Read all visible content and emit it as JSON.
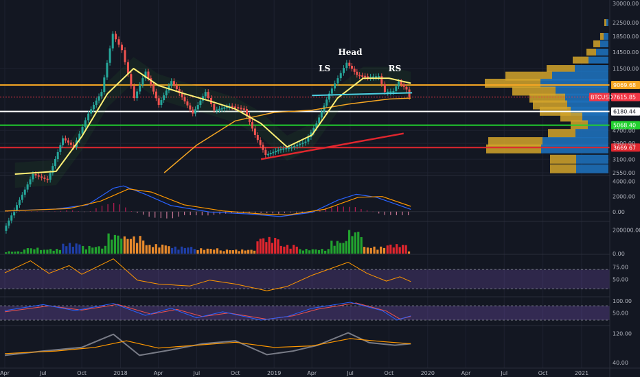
{
  "chart_data": {
    "type": "line",
    "symbol": "BTCUSD",
    "annotations": [
      {
        "label": "LS",
        "date": "2019-05-01",
        "price": 11500
      },
      {
        "label": "Head",
        "date": "2019-07-01",
        "price": 14500
      },
      {
        "label": "RS",
        "date": "2019-10-15",
        "price": 11500
      }
    ],
    "x_ticks": [
      "Apr",
      "Jul",
      "Oct",
      "2018",
      "Apr",
      "Jul",
      "Oct",
      "2019",
      "Apr",
      "Jul",
      "Oct",
      "2020",
      "Apr",
      "Jul",
      "Oct",
      "2021"
    ],
    "x_tick_dates": [
      "2017-04-01",
      "2017-07-01",
      "2017-10-01",
      "2018-01-01",
      "2018-04-01",
      "2018-07-01",
      "2018-10-01",
      "2019-01-01",
      "2019-04-01",
      "2019-07-01",
      "2019-10-01",
      "2020-01-01",
      "2020-04-01",
      "2020-07-01",
      "2020-10-01",
      "2021-01-01"
    ],
    "price_axis": {
      "scale": "log",
      "ticks": [
        "30000.00",
        "22500.00",
        "18500.00",
        "14500.00",
        "11500.00",
        "4700.00",
        "3900.00",
        "3100.00",
        "2550.00"
      ],
      "tick_values": [
        30000,
        22500,
        18500,
        14500,
        11500,
        4700,
        3900,
        3100,
        2550
      ]
    },
    "levels": [
      {
        "label": "9069.68",
        "value": 9069.68,
        "color": "#f5a623"
      },
      {
        "label": "7615.85",
        "value": 7615.85,
        "color": "#f23645"
      },
      {
        "label": "6180.44",
        "value": 6180.44,
        "color": "#ffffff"
      },
      {
        "label": "5068.40",
        "value": 5068.4,
        "color": "#22d12f"
      },
      {
        "label": "3669.67",
        "value": 3669.67,
        "color": "#e0262e"
      }
    ],
    "price_series": [
      {
        "date": "2017-04-01",
        "value": 1100
      },
      {
        "date": "2017-06-10",
        "value": 2500
      },
      {
        "date": "2017-07-15",
        "value": 2300
      },
      {
        "date": "2017-08-20",
        "value": 4200
      },
      {
        "date": "2017-09-15",
        "value": 3700
      },
      {
        "date": "2017-10-20",
        "value": 6000
      },
      {
        "date": "2017-11-20",
        "value": 8200
      },
      {
        "date": "2017-12-17",
        "value": 19000
      },
      {
        "date": "2018-01-08",
        "value": 15000
      },
      {
        "date": "2018-02-06",
        "value": 7500
      },
      {
        "date": "2018-03-05",
        "value": 11000
      },
      {
        "date": "2018-04-05",
        "value": 6800
      },
      {
        "date": "2018-05-05",
        "value": 9600
      },
      {
        "date": "2018-06-25",
        "value": 6000
      },
      {
        "date": "2018-07-25",
        "value": 8200
      },
      {
        "date": "2018-08-15",
        "value": 6300
      },
      {
        "date": "2018-09-20",
        "value": 6700
      },
      {
        "date": "2018-10-25",
        "value": 6400
      },
      {
        "date": "2018-11-20",
        "value": 4400
      },
      {
        "date": "2018-12-15",
        "value": 3300
      },
      {
        "date": "2019-01-20",
        "value": 3600
      },
      {
        "date": "2019-02-15",
        "value": 3700
      },
      {
        "date": "2019-03-20",
        "value": 4000
      },
      {
        "date": "2019-04-15",
        "value": 5200
      },
      {
        "date": "2019-05-15",
        "value": 8000
      },
      {
        "date": "2019-06-26",
        "value": 12500
      },
      {
        "date": "2019-07-20",
        "value": 10500
      },
      {
        "date": "2019-08-15",
        "value": 10200
      },
      {
        "date": "2019-09-10",
        "value": 10300
      },
      {
        "date": "2019-09-25",
        "value": 8200
      },
      {
        "date": "2019-10-15",
        "value": 8300
      },
      {
        "date": "2019-10-27",
        "value": 9500
      },
      {
        "date": "2019-11-15",
        "value": 8500
      },
      {
        "date": "2019-11-22",
        "value": 7615.85
      }
    ],
    "ma_fast": [
      {
        "date": "2017-04-25",
        "value": 2500
      },
      {
        "date": "2017-08-01",
        "value": 2600
      },
      {
        "date": "2017-10-01",
        "value": 4300
      },
      {
        "date": "2017-12-01",
        "value": 8000
      },
      {
        "date": "2018-02-01",
        "value": 11500
      },
      {
        "date": "2018-04-01",
        "value": 9000
      },
      {
        "date": "2018-06-01",
        "value": 8000
      },
      {
        "date": "2018-08-01",
        "value": 7200
      },
      {
        "date": "2018-10-01",
        "value": 6400
      },
      {
        "date": "2018-12-01",
        "value": 5200
      },
      {
        "date": "2019-02-01",
        "value": 3700
      },
      {
        "date": "2019-04-01",
        "value": 4400
      },
      {
        "date": "2019-06-01",
        "value": 7500
      },
      {
        "date": "2019-08-01",
        "value": 10000
      },
      {
        "date": "2019-10-01",
        "value": 10000
      },
      {
        "date": "2019-11-22",
        "value": 9300
      }
    ],
    "ma_slow": [
      {
        "date": "2018-04-15",
        "value": 2550
      },
      {
        "date": "2018-07-01",
        "value": 3800
      },
      {
        "date": "2018-10-01",
        "value": 5400
      },
      {
        "date": "2019-01-01",
        "value": 6100
      },
      {
        "date": "2019-04-01",
        "value": 6300
      },
      {
        "date": "2019-07-01",
        "value": 6900
      },
      {
        "date": "2019-10-01",
        "value": 7400
      },
      {
        "date": "2019-11-22",
        "value": 7500
      }
    ],
    "trend_support": [
      {
        "date": "2018-12-01",
        "value": 3100
      },
      {
        "date": "2019-11-05",
        "value": 4500
      }
    ],
    "neckline": [
      {
        "date": "2019-04-01",
        "value": 7800
      },
      {
        "date": "2019-11-25",
        "value": 8100
      }
    ],
    "volume_profile": [
      {
        "price": 22500,
        "w": 6
      },
      {
        "price": 18500,
        "w": 12
      },
      {
        "price": 16000,
        "w": 22
      },
      {
        "price": 14500,
        "w": 32
      },
      {
        "price": 13000,
        "w": 52
      },
      {
        "price": 11500,
        "w": 90
      },
      {
        "price": 10300,
        "w": 150
      },
      {
        "price": 9300,
        "w": 180
      },
      {
        "price": 8300,
        "w": 140
      },
      {
        "price": 7500,
        "w": 115
      },
      {
        "price": 6800,
        "w": 110
      },
      {
        "price": 6200,
        "w": 100
      },
      {
        "price": 5700,
        "w": 70
      },
      {
        "price": 5100,
        "w": 55
      },
      {
        "price": 4500,
        "w": 88
      },
      {
        "price": 4000,
        "w": 175
      },
      {
        "price": 3600,
        "w": 178
      },
      {
        "price": 3100,
        "w": 85
      },
      {
        "price": 2700,
        "w": 85
      }
    ],
    "macd_axis": {
      "ticks": [
        "4000.00",
        "2000.00",
        "0.00"
      ],
      "tick_values": [
        4000,
        2000,
        0
      ]
    },
    "macd": [
      {
        "date": "2017-04-01",
        "value": 100
      },
      {
        "date": "2017-08-01",
        "value": 350
      },
      {
        "date": "2017-10-15",
        "value": 900
      },
      {
        "date": "2017-12-15",
        "value": 3100
      },
      {
        "date": "2018-01-08",
        "value": 3400
      },
      {
        "date": "2018-03-01",
        "value": 2300
      },
      {
        "date": "2018-05-01",
        "value": 800
      },
      {
        "date": "2018-08-01",
        "value": -50
      },
      {
        "date": "2018-11-01",
        "value": -300
      },
      {
        "date": "2019-01-15",
        "value": -650
      },
      {
        "date": "2019-04-01",
        "value": -100
      },
      {
        "date": "2019-06-01",
        "value": 1500
      },
      {
        "date": "2019-07-15",
        "value": 2300
      },
      {
        "date": "2019-09-01",
        "value": 1900
      },
      {
        "date": "2019-11-22",
        "value": 300
      }
    ],
    "macd_signal": [
      {
        "date": "2017-04-01",
        "value": 80
      },
      {
        "date": "2017-09-01",
        "value": 400
      },
      {
        "date": "2017-11-15",
        "value": 1400
      },
      {
        "date": "2018-01-20",
        "value": 3000
      },
      {
        "date": "2018-03-15",
        "value": 2600
      },
      {
        "date": "2018-06-01",
        "value": 900
      },
      {
        "date": "2018-09-01",
        "value": 100
      },
      {
        "date": "2018-12-01",
        "value": -300
      },
      {
        "date": "2019-02-01",
        "value": -450
      },
      {
        "date": "2019-05-01",
        "value": 300
      },
      {
        "date": "2019-07-20",
        "value": 1900
      },
      {
        "date": "2019-09-15",
        "value": 2000
      },
      {
        "date": "2019-11-22",
        "value": 700
      }
    ],
    "volume_axis": {
      "ticks": [
        "200000.00",
        "0.00"
      ],
      "tick_values": [
        200000,
        0
      ]
    },
    "volume": [
      {
        "date": "2017-04-01",
        "value": 20000,
        "color": "#22a32f"
      },
      {
        "date": "2017-05-15",
        "value": 50000,
        "color": "#22a32f"
      },
      {
        "date": "2017-07-01",
        "value": 40000,
        "color": "#22a32f"
      },
      {
        "date": "2017-08-15",
        "value": 90000,
        "color": "#1f3fa8"
      },
      {
        "date": "2017-10-01",
        "value": 65000,
        "color": "#22a32f"
      },
      {
        "date": "2017-12-01",
        "value": 170000,
        "color": "#22a32f"
      },
      {
        "date": "2018-01-08",
        "value": 150000,
        "color": "#e88a2c"
      },
      {
        "date": "2018-03-01",
        "value": 80000,
        "color": "#e88a2c"
      },
      {
        "date": "2018-05-01",
        "value": 60000,
        "color": "#1f3fa8"
      },
      {
        "date": "2018-07-01",
        "value": 45000,
        "color": "#e88a2c"
      },
      {
        "date": "2018-09-01",
        "value": 35000,
        "color": "#e88a2c"
      },
      {
        "date": "2018-11-20",
        "value": 140000,
        "color": "#e0262e"
      },
      {
        "date": "2019-01-15",
        "value": 75000,
        "color": "#e0262e"
      },
      {
        "date": "2019-03-01",
        "value": 40000,
        "color": "#22a32f"
      },
      {
        "date": "2019-05-15",
        "value": 110000,
        "color": "#22a32f"
      },
      {
        "date": "2019-06-26",
        "value": 200000,
        "color": "#22a32f"
      },
      {
        "date": "2019-08-01",
        "value": 60000,
        "color": "#e88a2c"
      },
      {
        "date": "2019-09-25",
        "value": 80000,
        "color": "#e0262e"
      },
      {
        "date": "2019-11-15",
        "value": 25000,
        "color": "#e88a2c"
      }
    ],
    "rsi_axis": {
      "ticks": [
        "75.00",
        "50.00"
      ],
      "tick_values": [
        75,
        50
      ]
    },
    "rsi_band": [
      70,
      30
    ],
    "rsi": [
      {
        "date": "2017-04-01",
        "value": 63
      },
      {
        "date": "2017-06-01",
        "value": 88
      },
      {
        "date": "2017-07-15",
        "value": 62
      },
      {
        "date": "2017-09-01",
        "value": 78
      },
      {
        "date": "2017-10-01",
        "value": 60
      },
      {
        "date": "2017-12-15",
        "value": 92
      },
      {
        "date": "2018-02-10",
        "value": 48
      },
      {
        "date": "2018-04-01",
        "value": 40
      },
      {
        "date": "2018-06-15",
        "value": 36
      },
      {
        "date": "2018-08-01",
        "value": 48
      },
      {
        "date": "2018-10-01",
        "value": 40
      },
      {
        "date": "2018-12-15",
        "value": 26
      },
      {
        "date": "2019-02-01",
        "value": 35
      },
      {
        "date": "2019-04-01",
        "value": 58
      },
      {
        "date": "2019-06-26",
        "value": 85
      },
      {
        "date": "2019-08-10",
        "value": 62
      },
      {
        "date": "2019-09-25",
        "value": 46
      },
      {
        "date": "2019-10-27",
        "value": 55
      },
      {
        "date": "2019-11-22",
        "value": 45
      }
    ],
    "stoch_axis": {
      "ticks": [
        "100.00",
        "50.00"
      ],
      "tick_values": [
        100,
        50
      ]
    },
    "stoch_band": [
      80,
      20
    ],
    "stoch_k": [
      {
        "date": "2017-04-01",
        "value": 60
      },
      {
        "date": "2017-07-01",
        "value": 85
      },
      {
        "date": "2017-09-15",
        "value": 60
      },
      {
        "date": "2017-12-15",
        "value": 90
      },
      {
        "date": "2018-03-01",
        "value": 40
      },
      {
        "date": "2018-05-01",
        "value": 70
      },
      {
        "date": "2018-07-01",
        "value": 30
      },
      {
        "date": "2018-09-01",
        "value": 55
      },
      {
        "date": "2018-12-01",
        "value": 20
      },
      {
        "date": "2019-02-01",
        "value": 35
      },
      {
        "date": "2019-04-01",
        "value": 70
      },
      {
        "date": "2019-07-01",
        "value": 95
      },
      {
        "date": "2019-09-15",
        "value": 60
      },
      {
        "date": "2019-10-20",
        "value": 20
      },
      {
        "date": "2019-11-22",
        "value": 38
      }
    ],
    "stoch_d": [
      {
        "date": "2017-04-01",
        "value": 55
      },
      {
        "date": "2017-07-15",
        "value": 80
      },
      {
        "date": "2017-10-01",
        "value": 62
      },
      {
        "date": "2017-12-25",
        "value": 86
      },
      {
        "date": "2018-03-15",
        "value": 45
      },
      {
        "date": "2018-05-15",
        "value": 65
      },
      {
        "date": "2018-07-15",
        "value": 35
      },
      {
        "date": "2018-09-15",
        "value": 50
      },
      {
        "date": "2018-12-15",
        "value": 24
      },
      {
        "date": "2019-02-15",
        "value": 38
      },
      {
        "date": "2019-04-15",
        "value": 66
      },
      {
        "date": "2019-07-15",
        "value": 92
      },
      {
        "date": "2019-09-25",
        "value": 58
      },
      {
        "date": "2019-10-27",
        "value": 25
      },
      {
        "date": "2019-11-22",
        "value": 35
      }
    ],
    "osc3_axis": {
      "ticks": [
        "120.00",
        "40.00"
      ],
      "tick_values": [
        120,
        40
      ]
    },
    "osc3": [
      {
        "date": "2017-04-01",
        "value": 60
      },
      {
        "date": "2017-07-01",
        "value": 72
      },
      {
        "date": "2017-10-01",
        "value": 82
      },
      {
        "date": "2017-12-15",
        "value": 118
      },
      {
        "date": "2018-02-15",
        "value": 60
      },
      {
        "date": "2018-05-01",
        "value": 75
      },
      {
        "date": "2018-07-15",
        "value": 92
      },
      {
        "date": "2018-10-01",
        "value": 100
      },
      {
        "date": "2018-12-15",
        "value": 62
      },
      {
        "date": "2019-02-15",
        "value": 72
      },
      {
        "date": "2019-04-15",
        "value": 88
      },
      {
        "date": "2019-06-26",
        "value": 122
      },
      {
        "date": "2019-08-15",
        "value": 95
      },
      {
        "date": "2019-10-15",
        "value": 88
      },
      {
        "date": "2019-11-22",
        "value": 92
      }
    ],
    "osc3_ma": [
      {
        "date": "2017-04-01",
        "value": 65
      },
      {
        "date": "2017-08-01",
        "value": 72
      },
      {
        "date": "2017-11-01",
        "value": 82
      },
      {
        "date": "2018-01-15",
        "value": 100
      },
      {
        "date": "2018-04-01",
        "value": 80
      },
      {
        "date": "2018-07-01",
        "value": 88
      },
      {
        "date": "2018-10-01",
        "value": 96
      },
      {
        "date": "2019-01-01",
        "value": 82
      },
      {
        "date": "2019-04-01",
        "value": 86
      },
      {
        "date": "2019-07-01",
        "value": 106
      },
      {
        "date": "2019-09-15",
        "value": 98
      },
      {
        "date": "2019-11-22",
        "value": 92
      }
    ],
    "colors": {
      "price_up": "#26a69a",
      "price_down": "#ef5350",
      "ma_fast": "#fff176",
      "ma_slow": "#f5a623",
      "trend": "#e0262e",
      "neckline": "#4dd0e1",
      "macd": "#2962ff",
      "signal": "#ff9800",
      "rsi": "#ff9800",
      "stoch_k": "#2962ff",
      "stoch_d": "#ef5350",
      "osc3": "#787b86",
      "osc3_ma": "#ff9800",
      "profile_up": "#d4a52a",
      "profile_down": "#1e6fb8"
    }
  }
}
